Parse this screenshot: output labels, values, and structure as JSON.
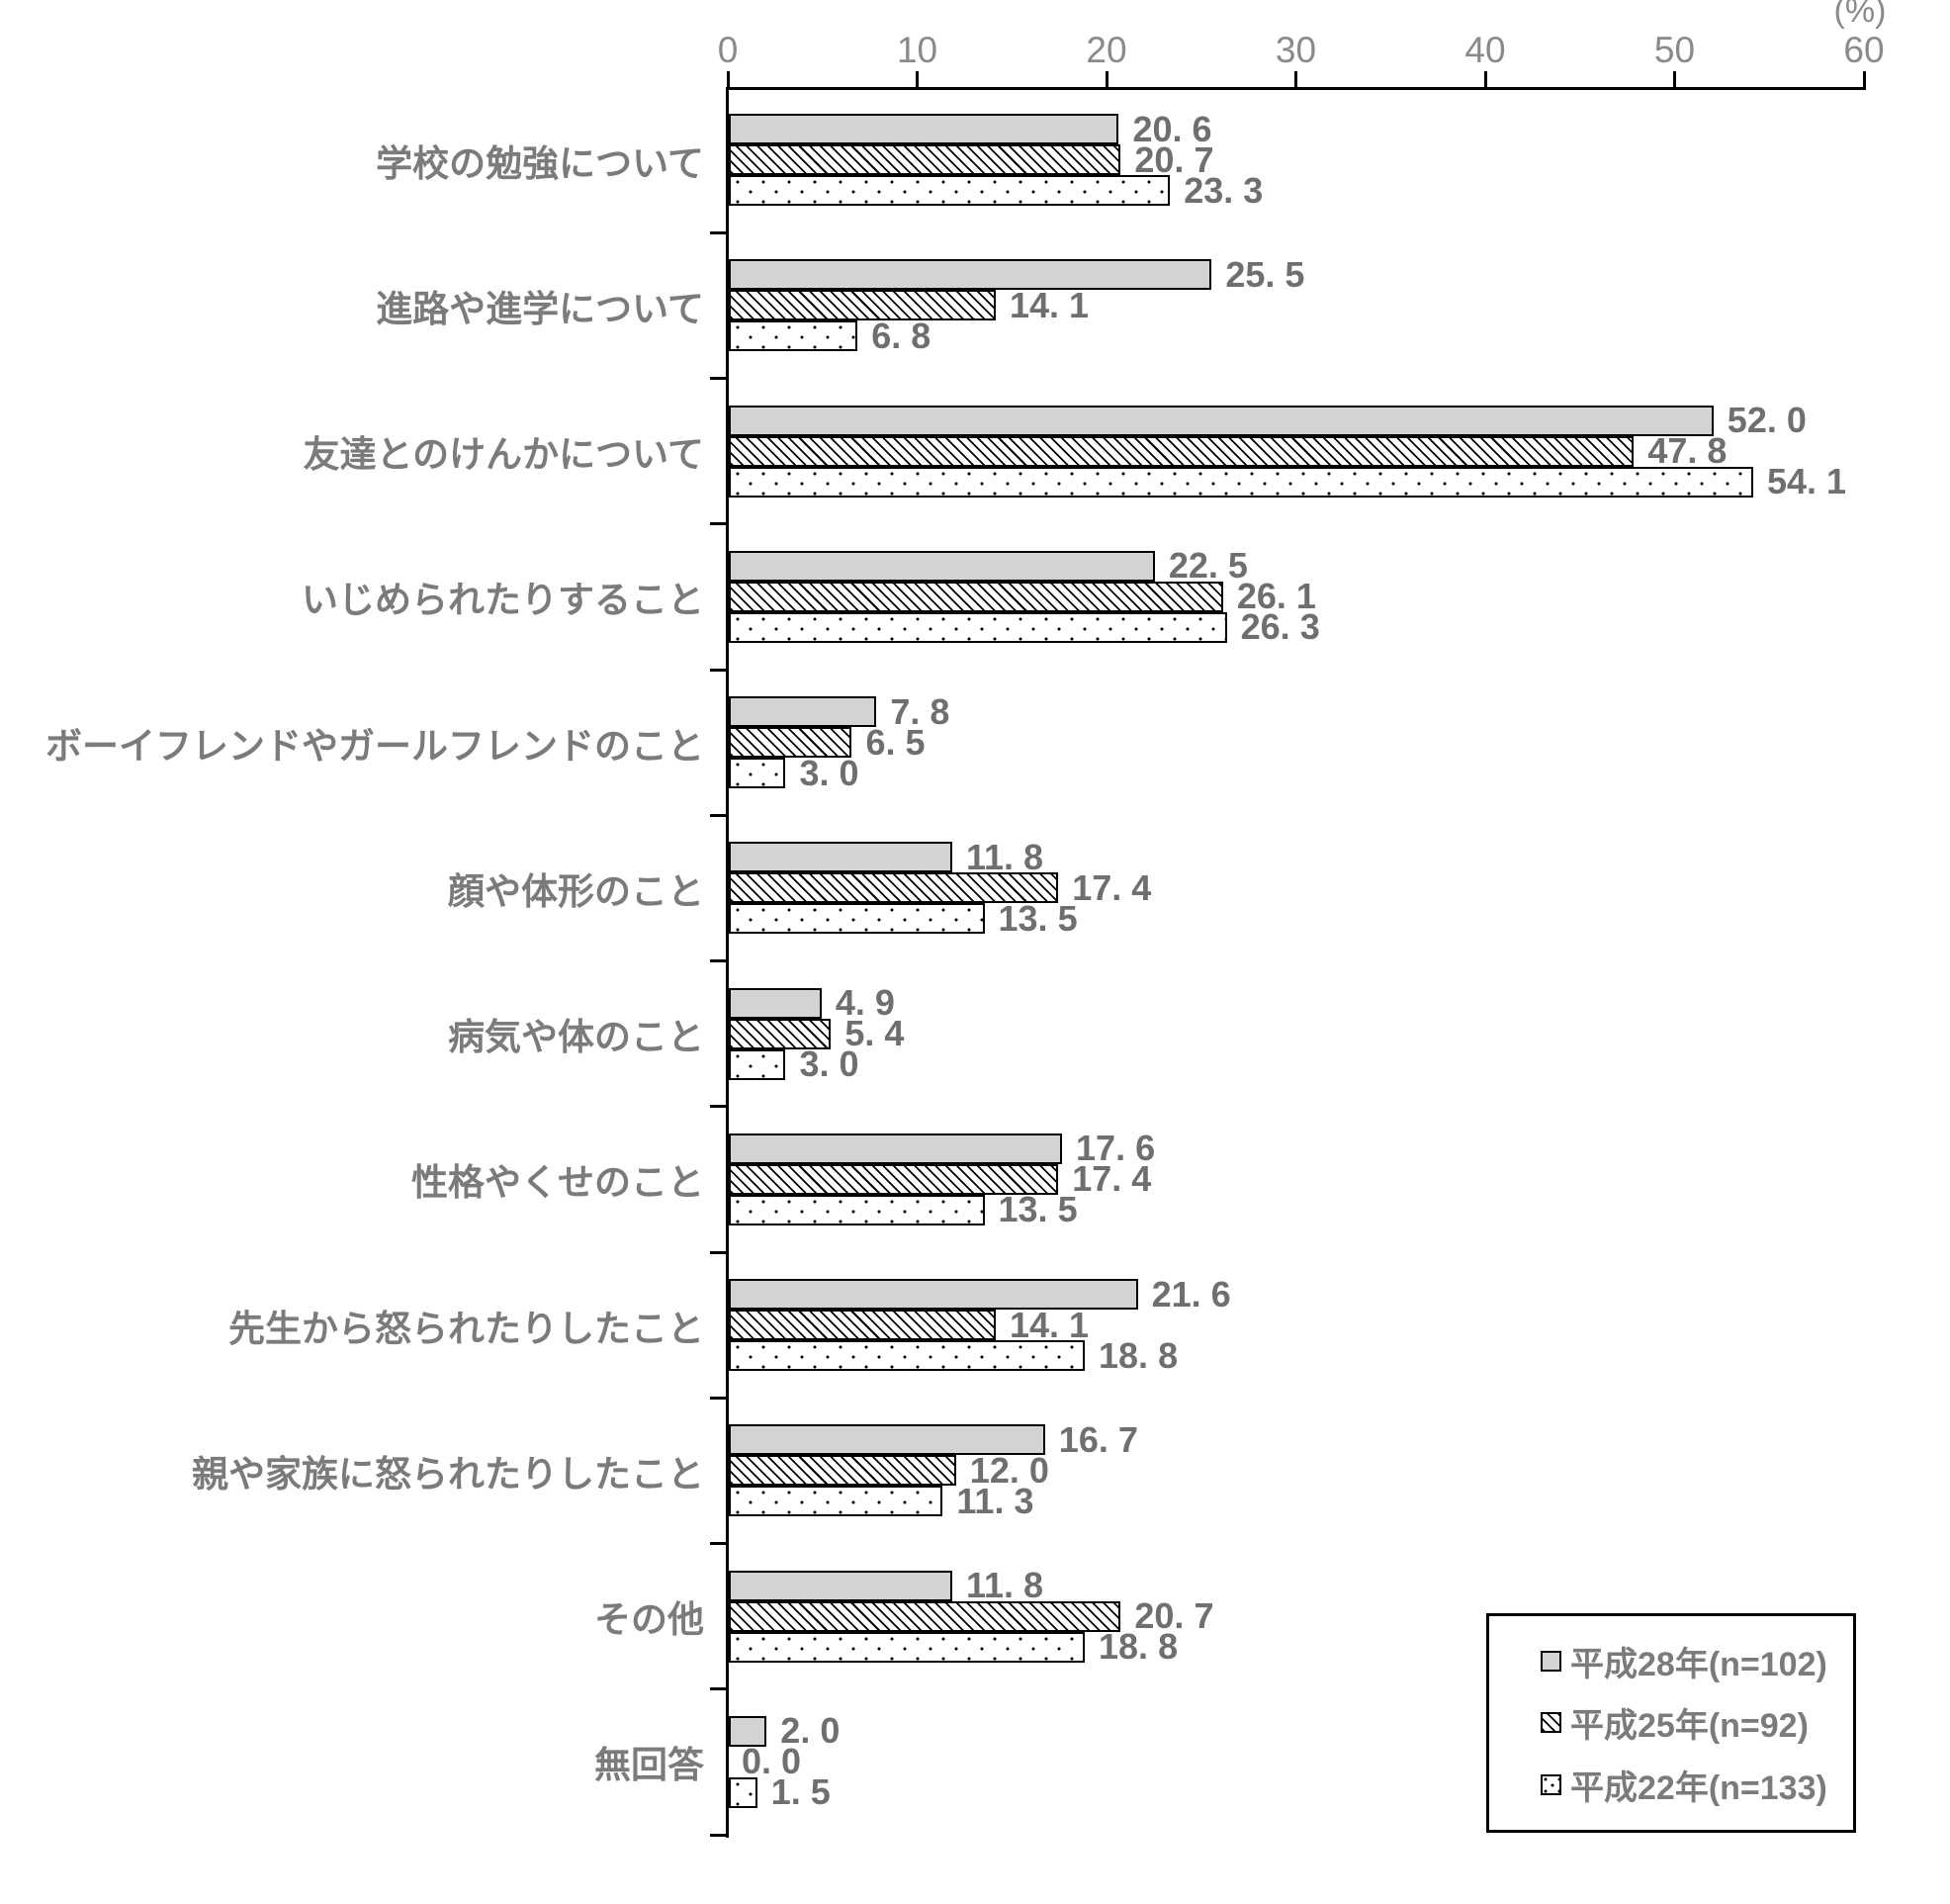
{
  "chart_data": {
    "type": "bar",
    "orientation": "horizontal",
    "unit_label": "(%)",
    "grid": false,
    "legend_position": "bottom-right",
    "x_axis": {
      "min": 0,
      "max": 60,
      "ticks": [
        0,
        10,
        20,
        30,
        40,
        50,
        60
      ]
    },
    "categories": [
      "学校の勉強について",
      "進路や進学について",
      "友達とのけんかについて",
      "いじめられたりすること",
      "ボーイフレンドやガールフレンドのこと",
      "顔や体形のこと",
      "病気や体のこと",
      "性格やくせのこと",
      "先生から怒られたりしたこと",
      "親や家族に怒られたりしたこと",
      "その他",
      "無回答"
    ],
    "series": [
      {
        "name": "平成28年(n=102)",
        "pattern": "solid",
        "values": [
          20.6,
          25.5,
          52.0,
          22.5,
          7.8,
          11.8,
          4.9,
          17.6,
          21.6,
          16.7,
          11.8,
          2.0
        ]
      },
      {
        "name": "平成25年(n=92)",
        "pattern": "hatch",
        "values": [
          20.7,
          14.1,
          47.8,
          26.1,
          6.5,
          17.4,
          5.4,
          17.4,
          14.1,
          12.0,
          20.7,
          0.0
        ]
      },
      {
        "name": "平成22年(n=133)",
        "pattern": "dots",
        "values": [
          23.3,
          6.8,
          54.1,
          26.3,
          3.0,
          13.5,
          3.0,
          13.5,
          18.8,
          11.3,
          18.8,
          1.5
        ]
      }
    ]
  },
  "colors": {
    "bar_fill_gray": "#d3d3d3",
    "bar_border": "#000000",
    "axis_line": "#000000",
    "text_gray": "#757575",
    "background": "#ffffff"
  }
}
